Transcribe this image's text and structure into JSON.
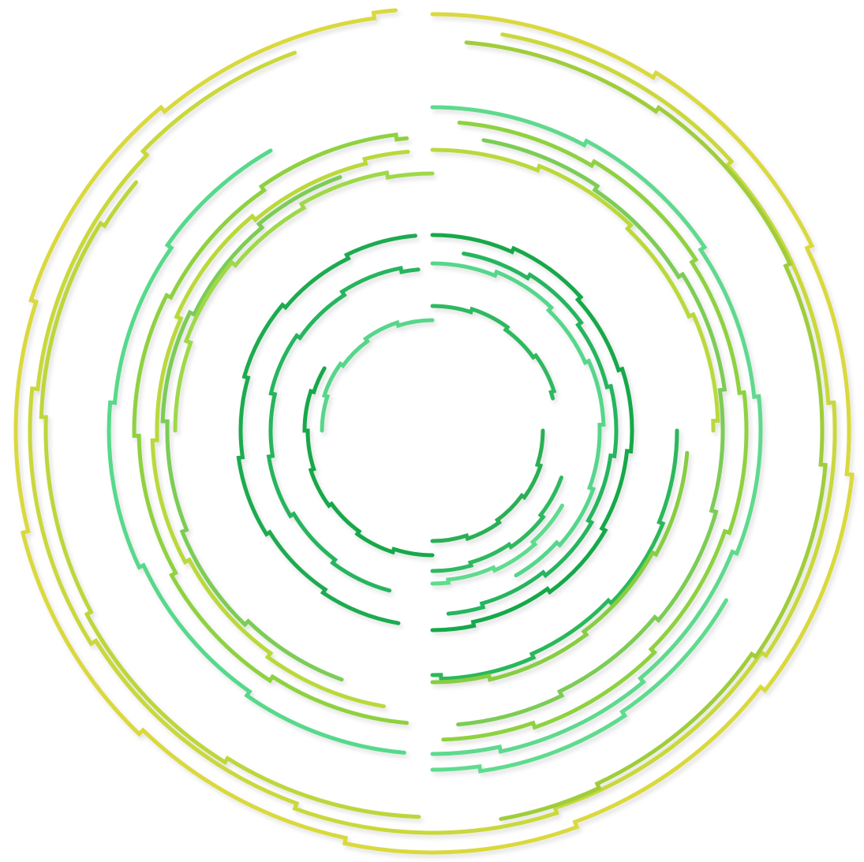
{
  "artwork": {
    "subject": "concentric-stepped-ring-segments",
    "ring_groups": [
      {
        "name": "outer-yellow",
        "colors": [
          "#d8d83a",
          "#b9d63b",
          "#8fc63a"
        ]
      },
      {
        "name": "upper-middle-green",
        "colors": [
          "#56d98b",
          "#8fd13f",
          "#b9d93a",
          "#7ccc56"
        ]
      },
      {
        "name": "inner-green",
        "colors": [
          "#14a84a",
          "#27b55e",
          "#57d68b"
        ]
      },
      {
        "name": "lower-green",
        "colors": [
          "#29b85a",
          "#88cd43",
          "#5edb8e"
        ]
      }
    ]
  }
}
